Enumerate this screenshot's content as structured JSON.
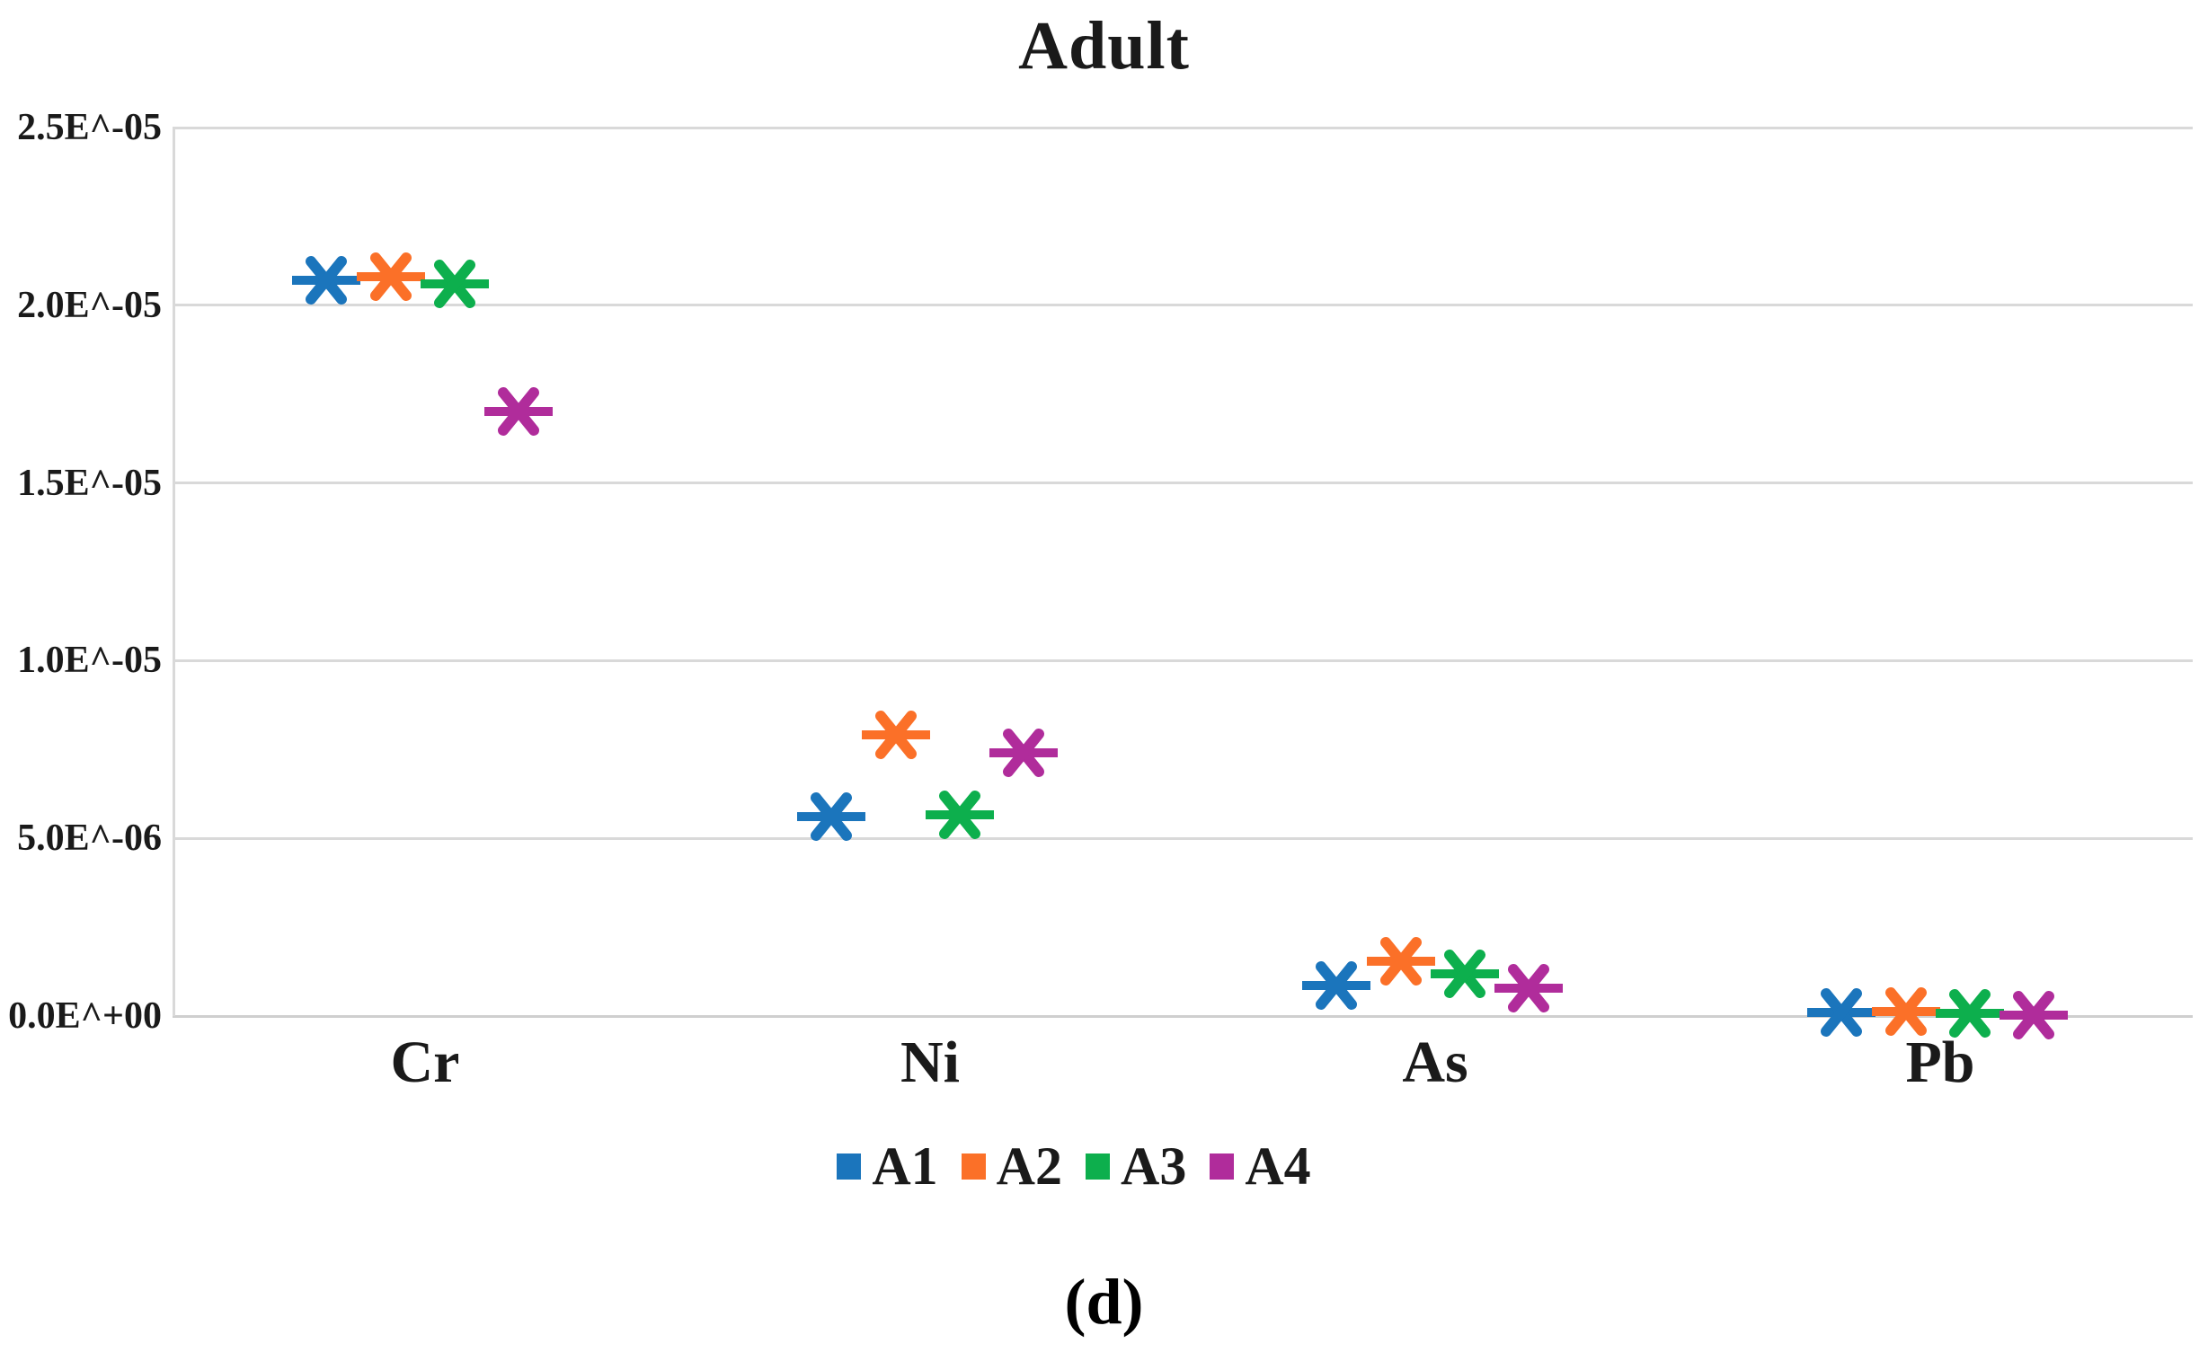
{
  "figure": {
    "title": "Adult",
    "caption": "(d)"
  },
  "chart_data": {
    "type": "scatter",
    "title": "Adult",
    "marker": "x-with-horizontal-dash",
    "grid": true,
    "legend_position": "bottom",
    "categories": [
      "Cr",
      "Ni",
      "As",
      "Pb"
    ],
    "series": [
      {
        "name": "A1",
        "color": "#1b75bc",
        "values": [
          2.07e-05,
          5.6e-06,
          8.6e-07,
          1e-07
        ]
      },
      {
        "name": "A2",
        "color": "#fb7028",
        "values": [
          2.08e-05,
          7.9e-06,
          1.55e-06,
          1.2e-07
        ]
      },
      {
        "name": "A3",
        "color": "#0daf4d",
        "values": [
          2.06e-05,
          5.65e-06,
          1.2e-06,
          8e-08
        ]
      },
      {
        "name": "A4",
        "color": "#b02c9b",
        "values": [
          1.7e-05,
          7.4e-06,
          7.8e-07,
          3e-08
        ]
      }
    ],
    "y_ticks": [
      {
        "label": "0.0E^+00",
        "value": 0
      },
      {
        "label": "5.0E^-06",
        "value": 5e-06
      },
      {
        "label": "1.0E^-05",
        "value": 1e-05
      },
      {
        "label": "1.5E^-05",
        "value": 1.5e-05
      },
      {
        "label": "2.0E^-05",
        "value": 2e-05
      },
      {
        "label": "2.5E^-05",
        "value": 2.5e-05
      }
    ],
    "ylim": [
      0,
      2.5e-05
    ],
    "xlabel": "",
    "ylabel": "",
    "caption": "(d)"
  }
}
